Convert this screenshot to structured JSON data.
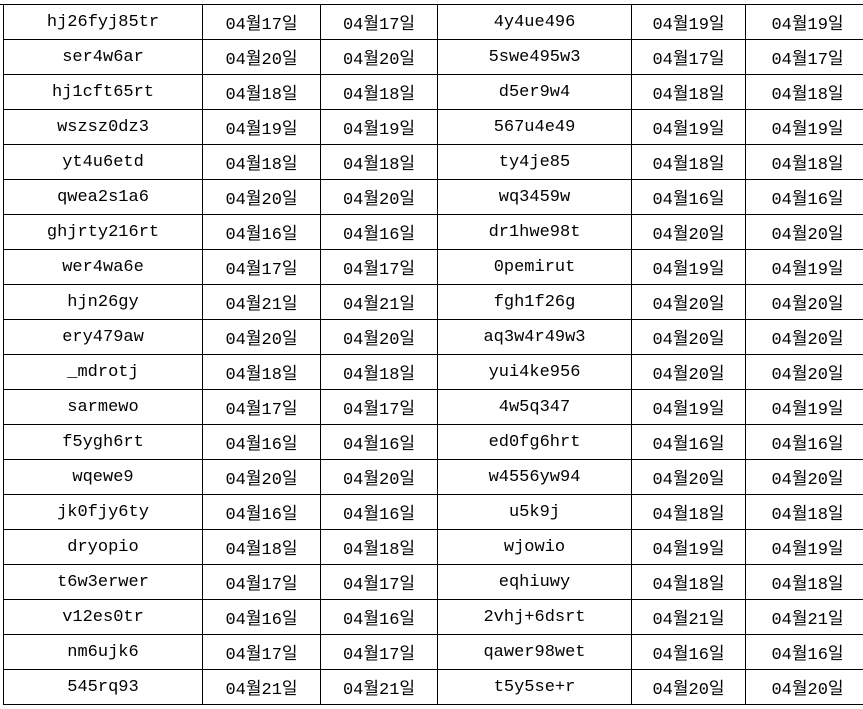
{
  "table": {
    "rows": [
      [
        "hj26fyj85tr",
        "04월17일",
        "04월17일",
        "4y4ue496",
        "04월19일",
        "04월19일"
      ],
      [
        "ser4w6ar",
        "04월20일",
        "04월20일",
        "5swe495w3",
        "04월17일",
        "04월17일"
      ],
      [
        "hj1cft65rt",
        "04월18일",
        "04월18일",
        "d5er9w4",
        "04월18일",
        "04월18일"
      ],
      [
        "wszsz0dz3",
        "04월19일",
        "04월19일",
        "567u4e49",
        "04월19일",
        "04월19일"
      ],
      [
        "yt4u6etd",
        "04월18일",
        "04월18일",
        "ty4je85",
        "04월18일",
        "04월18일"
      ],
      [
        "qwea2s1a6",
        "04월20일",
        "04월20일",
        "wq3459w",
        "04월16일",
        "04월16일"
      ],
      [
        "ghjrty216rt",
        "04월16일",
        "04월16일",
        "dr1hwe98t",
        "04월20일",
        "04월20일"
      ],
      [
        "wer4wa6e",
        "04월17일",
        "04월17일",
        "0pemirut",
        "04월19일",
        "04월19일"
      ],
      [
        "hjn26gy",
        "04월21일",
        "04월21일",
        "fgh1f26g",
        "04월20일",
        "04월20일"
      ],
      [
        "ery479aw",
        "04월20일",
        "04월20일",
        "aq3w4r49w3",
        "04월20일",
        "04월20일"
      ],
      [
        "_mdrotj",
        "04월18일",
        "04월18일",
        "yui4ke956",
        "04월20일",
        "04월20일"
      ],
      [
        "sarmewo",
        "04월17일",
        "04월17일",
        "4w5q347",
        "04월19일",
        "04월19일"
      ],
      [
        "f5ygh6rt",
        "04월16일",
        "04월16일",
        "ed0fg6hrt",
        "04월16일",
        "04월16일"
      ],
      [
        "wqewe9",
        "04월20일",
        "04월20일",
        "w4556yw94",
        "04월20일",
        "04월20일"
      ],
      [
        "jk0fjy6ty",
        "04월16일",
        "04월16일",
        "u5k9j",
        "04월18일",
        "04월18일"
      ],
      [
        "dryopio",
        "04월18일",
        "04월18일",
        "wjowio",
        "04월19일",
        "04월19일"
      ],
      [
        "t6w3erwer",
        "04월17일",
        "04월17일",
        "eqhiuwy",
        "04월18일",
        "04월18일"
      ],
      [
        "v12es0tr",
        "04월16일",
        "04월16일",
        "2vhj+6dsrt",
        "04월21일",
        "04월21일"
      ],
      [
        "nm6ujk6",
        "04월17일",
        "04월17일",
        "qawer98wet",
        "04월16일",
        "04월16일"
      ],
      [
        "545rq93",
        "04월21일",
        "04월21일",
        "t5y5se+r",
        "04월20일",
        "04월20일"
      ]
    ]
  }
}
